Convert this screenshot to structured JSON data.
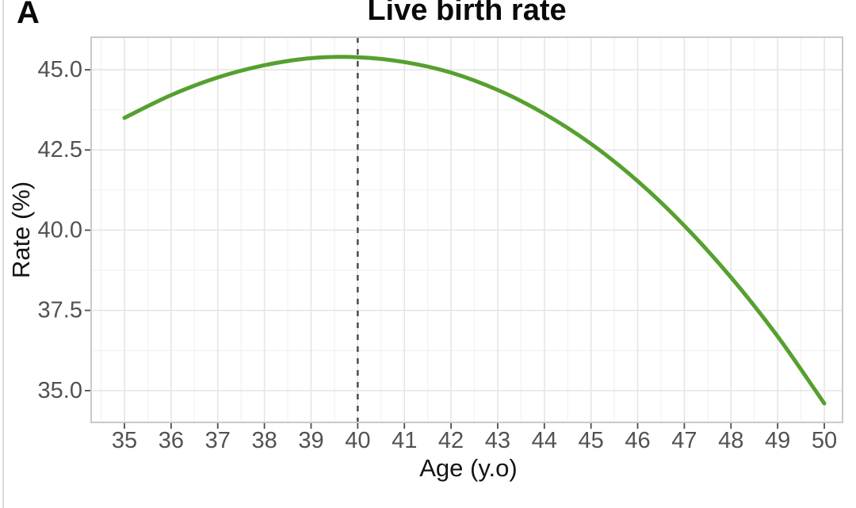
{
  "figure": {
    "panel_label": "A",
    "background": "#ffffff"
  },
  "chart_data": {
    "type": "line",
    "title": "Live birth rate",
    "xlabel": "Age (y.o)",
    "ylabel": "Rate (%)",
    "x": [
      35,
      36,
      37,
      38,
      39,
      40,
      41,
      42,
      43,
      44,
      45,
      46,
      47,
      48,
      49,
      50
    ],
    "y": [
      43.5,
      44.21,
      44.76,
      45.14,
      45.36,
      45.39,
      45.24,
      44.91,
      44.37,
      43.63,
      42.69,
      41.53,
      40.14,
      38.53,
      36.69,
      34.6
    ],
    "series_name": "Live birth rate",
    "x_tick_labels": [
      "35",
      "36",
      "37",
      "38",
      "39",
      "40",
      "41",
      "42",
      "43",
      "44",
      "45",
      "46",
      "47",
      "48",
      "49",
      "50"
    ],
    "y_tick_values": [
      35,
      37.5,
      40,
      42.5,
      45
    ],
    "y_tick_labels": [
      "35.0",
      "37.5",
      "40.0",
      "42.5",
      "45.0"
    ],
    "xlim": [
      34.3,
      50.4
    ],
    "ylim": [
      34.0,
      46.0
    ],
    "grid": "major+minor",
    "legend": "none",
    "reference_line": {
      "orientation": "vertical",
      "x": 40,
      "style": "dashed"
    },
    "peak": {
      "x": 39.7,
      "y": 45.4
    }
  },
  "colors": {
    "curve": "#56a02f",
    "reference_line": "#525252",
    "tick_label": "#525252",
    "axis_title": "#141414",
    "grid_major": "#e4e4e4",
    "grid_minor": "#f2f2f2",
    "panel_border": "#c9c9c9",
    "tick_mark": "#4d4d4d"
  }
}
